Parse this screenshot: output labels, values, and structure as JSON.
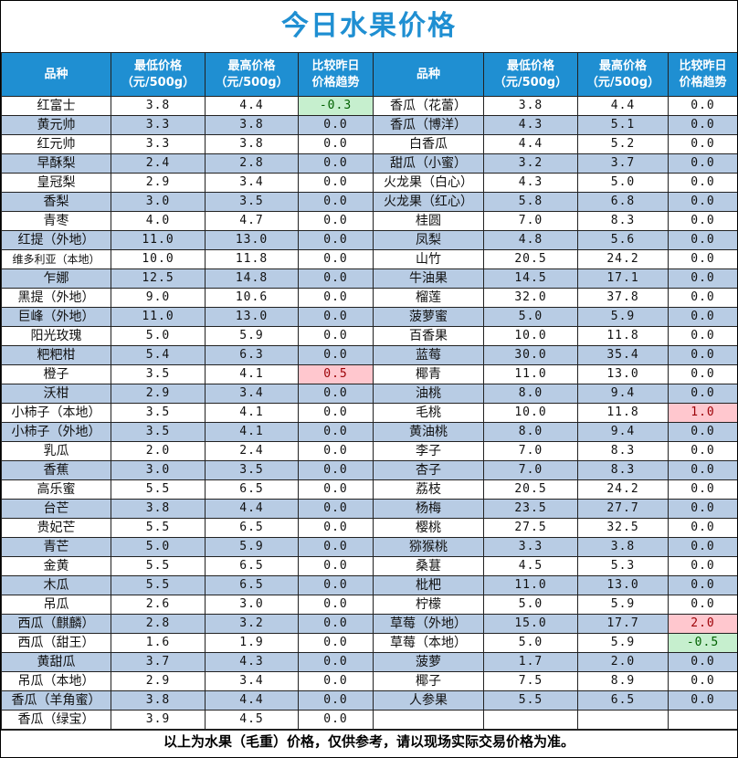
{
  "title": "今日水果价格",
  "headers": {
    "name": "品种",
    "low": [
      "最低价格",
      "（元/500g）"
    ],
    "high": [
      "最高价格",
      "（元/500g）"
    ],
    "trend": [
      "比较昨日",
      "价格趋势"
    ]
  },
  "left": [
    {
      "name": "红富士",
      "low": "3.8",
      "high": "4.4",
      "trend": "-0.3",
      "trend_style": "neg"
    },
    {
      "name": "黄元帅",
      "low": "3.3",
      "high": "3.8",
      "trend": "0.0"
    },
    {
      "name": "红元帅",
      "low": "3.3",
      "high": "3.8",
      "trend": "0.0"
    },
    {
      "name": "早酥梨",
      "low": "2.4",
      "high": "2.8",
      "trend": "0.0"
    },
    {
      "name": "皇冠梨",
      "low": "2.9",
      "high": "3.4",
      "trend": "0.0"
    },
    {
      "name": "香梨",
      "low": "3.0",
      "high": "3.5",
      "trend": "0.0"
    },
    {
      "name": "青枣",
      "low": "4.0",
      "high": "4.7",
      "trend": "0.0"
    },
    {
      "name": "红提（外地）",
      "low": "11.0",
      "high": "13.0",
      "trend": "0.0"
    },
    {
      "name": "维多利亚（本地）",
      "low": "10.0",
      "high": "11.8",
      "trend": "0.0",
      "small": true
    },
    {
      "name": "乍娜",
      "low": "12.5",
      "high": "14.8",
      "trend": "0.0"
    },
    {
      "name": "黑提（外地）",
      "low": "9.0",
      "high": "10.6",
      "trend": "0.0"
    },
    {
      "name": "巨峰（外地）",
      "low": "11.0",
      "high": "13.0",
      "trend": "0.0"
    },
    {
      "name": "阳光玫瑰",
      "low": "5.0",
      "high": "5.9",
      "trend": "0.0"
    },
    {
      "name": "粑粑柑",
      "low": "5.4",
      "high": "6.3",
      "trend": "0.0"
    },
    {
      "name": "橙子",
      "low": "3.5",
      "high": "4.1",
      "trend": "0.5",
      "trend_style": "pos"
    },
    {
      "name": "沃柑",
      "low": "2.9",
      "high": "3.4",
      "trend": "0.0"
    },
    {
      "name": "小柿子（本地）",
      "low": "3.5",
      "high": "4.1",
      "trend": "0.0"
    },
    {
      "name": "小柿子（外地）",
      "low": "3.5",
      "high": "4.1",
      "trend": "0.0"
    },
    {
      "name": "乳瓜",
      "low": "2.0",
      "high": "2.4",
      "trend": "0.0"
    },
    {
      "name": "香蕉",
      "low": "3.0",
      "high": "3.5",
      "trend": "0.0"
    },
    {
      "name": "高乐蜜",
      "low": "5.5",
      "high": "6.5",
      "trend": "0.0"
    },
    {
      "name": "台芒",
      "low": "3.8",
      "high": "4.4",
      "trend": "0.0"
    },
    {
      "name": "贵妃芒",
      "low": "5.5",
      "high": "6.5",
      "trend": "0.0"
    },
    {
      "name": "青芒",
      "low": "5.0",
      "high": "5.9",
      "trend": "0.0"
    },
    {
      "name": "金黄",
      "low": "5.5",
      "high": "6.5",
      "trend": "0.0"
    },
    {
      "name": "木瓜",
      "low": "5.5",
      "high": "6.5",
      "trend": "0.0"
    },
    {
      "name": "吊瓜",
      "low": "2.6",
      "high": "3.0",
      "trend": "0.0"
    },
    {
      "name": "西瓜（麒麟）",
      "low": "2.8",
      "high": "3.2",
      "trend": "0.0"
    },
    {
      "name": "西瓜（甜王）",
      "low": "1.6",
      "high": "1.9",
      "trend": "0.0"
    },
    {
      "name": "黄甜瓜",
      "low": "3.7",
      "high": "4.3",
      "trend": "0.0"
    },
    {
      "name": "吊瓜（本地）",
      "low": "2.9",
      "high": "3.4",
      "trend": "0.0"
    },
    {
      "name": "香瓜（羊角蜜）",
      "low": "3.8",
      "high": "4.4",
      "trend": "0.0"
    },
    {
      "name": "香瓜（绿宝）",
      "low": "3.9",
      "high": "4.5",
      "trend": "0.0"
    }
  ],
  "right": [
    {
      "name": "香瓜（花蕾）",
      "low": "3.8",
      "high": "4.4",
      "trend": "0.0"
    },
    {
      "name": "香瓜（博洋）",
      "low": "4.3",
      "high": "5.1",
      "trend": "0.0"
    },
    {
      "name": "白香瓜",
      "low": "4.4",
      "high": "5.2",
      "trend": "0.0"
    },
    {
      "name": "甜瓜（小蜜）",
      "low": "3.2",
      "high": "3.7",
      "trend": "0.0"
    },
    {
      "name": "火龙果（白心）",
      "low": "4.3",
      "high": "5.0",
      "trend": "0.0"
    },
    {
      "name": "火龙果（红心）",
      "low": "5.8",
      "high": "6.8",
      "trend": "0.0"
    },
    {
      "name": "桂圆",
      "low": "7.0",
      "high": "8.3",
      "trend": "0.0"
    },
    {
      "name": "凤梨",
      "low": "4.8",
      "high": "5.6",
      "trend": "0.0"
    },
    {
      "name": "山竹",
      "low": "20.5",
      "high": "24.2",
      "trend": "0.0"
    },
    {
      "name": "牛油果",
      "low": "14.5",
      "high": "17.1",
      "trend": "0.0"
    },
    {
      "name": "榴莲",
      "low": "32.0",
      "high": "37.8",
      "trend": "0.0"
    },
    {
      "name": "菠萝蜜",
      "low": "5.0",
      "high": "5.9",
      "trend": "0.0"
    },
    {
      "name": "百香果",
      "low": "10.0",
      "high": "11.8",
      "trend": "0.0"
    },
    {
      "name": "蓝莓",
      "low": "30.0",
      "high": "35.4",
      "trend": "0.0"
    },
    {
      "name": "椰青",
      "low": "11.0",
      "high": "13.0",
      "trend": "0.0"
    },
    {
      "name": "油桃",
      "low": "8.0",
      "high": "9.4",
      "trend": "0.0"
    },
    {
      "name": "毛桃",
      "low": "10.0",
      "high": "11.8",
      "trend": "1.0",
      "trend_style": "pos"
    },
    {
      "name": "黄油桃",
      "low": "8.0",
      "high": "9.4",
      "trend": "0.0"
    },
    {
      "name": "李子",
      "low": "7.0",
      "high": "8.3",
      "trend": "0.0"
    },
    {
      "name": "杏子",
      "low": "7.0",
      "high": "8.3",
      "trend": "0.0"
    },
    {
      "name": "荔枝",
      "low": "20.5",
      "high": "24.2",
      "trend": "0.0"
    },
    {
      "name": "杨梅",
      "low": "23.5",
      "high": "27.7",
      "trend": "0.0"
    },
    {
      "name": "樱桃",
      "low": "27.5",
      "high": "32.5",
      "trend": "0.0"
    },
    {
      "name": "猕猴桃",
      "low": "3.3",
      "high": "3.8",
      "trend": "0.0"
    },
    {
      "name": "桑葚",
      "low": "4.5",
      "high": "5.3",
      "trend": "0.0"
    },
    {
      "name": "枇杷",
      "low": "11.0",
      "high": "13.0",
      "trend": "0.0"
    },
    {
      "name": "柠檬",
      "low": "5.0",
      "high": "5.9",
      "trend": "0.0"
    },
    {
      "name": "草莓（外地）",
      "low": "15.0",
      "high": "17.7",
      "trend": "2.0",
      "trend_style": "pos"
    },
    {
      "name": "草莓（本地）",
      "low": "5.0",
      "high": "5.9",
      "trend": "-0.5",
      "trend_style": "neg"
    },
    {
      "name": "菠萝",
      "low": "1.7",
      "high": "2.0",
      "trend": "0.0"
    },
    {
      "name": "椰子",
      "low": "7.5",
      "high": "8.9",
      "trend": "0.0"
    },
    {
      "name": "人参果",
      "low": "5.5",
      "high": "6.5",
      "trend": "0.0"
    }
  ],
  "footer": "以上为水果（毛重）价格，仅供参考，请以现场实际交易价格为准。"
}
